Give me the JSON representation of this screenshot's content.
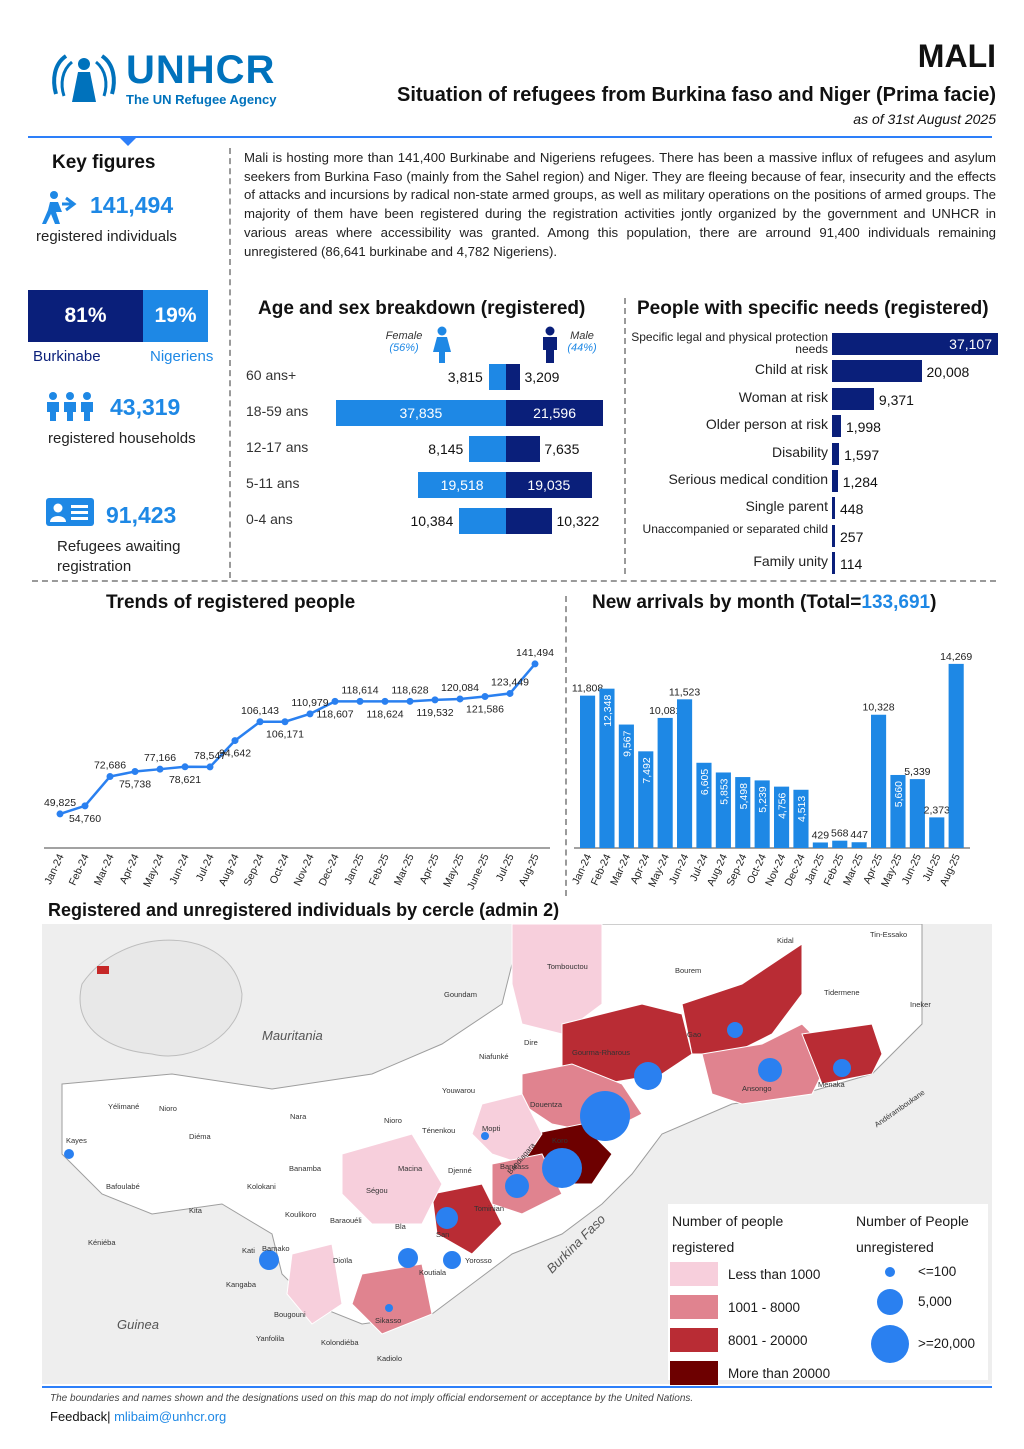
{
  "header": {
    "logo_text": "UNHCR",
    "logo_tagline": "The UN Refugee Agency",
    "country": "MALI",
    "subtitle": "Situation of refugees from Burkina faso and Niger (Prima facie)",
    "as_of": "as of 31st August 2025"
  },
  "key_figures": {
    "title": "Key figures",
    "registered_individuals": "141,494",
    "registered_individuals_label": "registered individuals",
    "burkinabe_pct": "81%",
    "nigeriens_pct": "19%",
    "burkinabe_share": 0.81,
    "burkinabe_label": "Burkinabe",
    "nigeriens_label": "Nigeriens",
    "households": "43,319",
    "households_label": "registered households",
    "awaiting": "91,423",
    "awaiting_label": "Refugees awaiting registration"
  },
  "intro": "Mali is hosting more than 141,400 Burkinabe and Nigeriens refugees. There has been a massive influx of refugees and asylum seekers from Burkina Faso (mainly from the Sahel region) and Niger. They are fleeing because of fear, insecurity and the effects of attacks and incursions by radical non-state armed groups, as well as military operations on the positions of armed groups. The majority of them have been registered during the registration activities jontly organized by the government and UNHCR in various areas where accessibility was granted. Among this population, there are arround 91,400 individuals remaining unregistered (86,641 burkinabe and 4,782 Nigeriens).",
  "age_sex": {
    "title": "Age and sex breakdown (registered)",
    "female_label": "Female",
    "female_pct": "(56%)",
    "male_label": "Male",
    "male_pct": "(44%)",
    "rows": [
      {
        "age": "60 ans+",
        "female": 3815,
        "male": 3209,
        "female_text": "3,815",
        "male_text": "3,209"
      },
      {
        "age": "18-59 ans",
        "female": 37835,
        "male": 21596,
        "female_text": "37,835",
        "male_text": "21,596"
      },
      {
        "age": "12-17 ans",
        "female": 8145,
        "male": 7635,
        "female_text": "8,145",
        "male_text": "7,635"
      },
      {
        "age": "5-11 ans",
        "female": 19518,
        "male": 19035,
        "female_text": "19,518",
        "male_text": "19,035"
      },
      {
        "age": "0-4 ans",
        "female": 10384,
        "male": 10322,
        "female_text": "10,384",
        "male_text": "10,322"
      }
    ]
  },
  "specific_needs": {
    "title": "People with specific needs (registered)",
    "items": [
      {
        "label": "Specific legal and physical protection needs",
        "value": 37107,
        "text": "37,107"
      },
      {
        "label": "Child at risk",
        "value": 20008,
        "text": "20,008"
      },
      {
        "label": "Woman at risk",
        "value": 9371,
        "text": "9,371"
      },
      {
        "label": "Older person at risk",
        "value": 1998,
        "text": "1,998"
      },
      {
        "label": "Disability",
        "value": 1597,
        "text": "1,597"
      },
      {
        "label": "Serious medical condition",
        "value": 1284,
        "text": "1,284"
      },
      {
        "label": "Single parent",
        "value": 448,
        "text": "448"
      },
      {
        "label": "Unaccompanied or separated child",
        "value": 257,
        "text": "257"
      },
      {
        "label": "Family unity",
        "value": 114,
        "text": "114"
      }
    ]
  },
  "chart_data": [
    {
      "type": "line",
      "title": "Trends of registered people",
      "categories": [
        "Jan-24",
        "Feb-24",
        "Mar-24",
        "Apr-24",
        "May-24",
        "Jun-24",
        "Jul-24",
        "Aug-24",
        "Sep-24",
        "Oct-24",
        "Nov-24",
        "Dec-24",
        "Jan-25",
        "Feb-25",
        "Mar-25",
        "Apr-25",
        "May-25",
        "June-25",
        "Jul-25",
        "Aug-25"
      ],
      "values": [
        49825,
        54760,
        72686,
        75738,
        77166,
        78621,
        78547,
        94642,
        106143,
        106171,
        110979,
        118607,
        118614,
        118624,
        118628,
        119532,
        120084,
        121586,
        123449,
        141494
      ],
      "labels": [
        "49,825",
        "54,760",
        "72,686",
        "75,738",
        "77,166",
        "78,621",
        "78,547",
        "94,642",
        "106,143",
        "106,171",
        "110,979",
        "118,607",
        "118,614",
        "118,624",
        "118,628",
        "119,532",
        "120,084",
        "121,586",
        "123,449",
        "141,494"
      ],
      "ylim": [
        40000,
        150000
      ]
    },
    {
      "type": "bar",
      "title": "New arrivals by month (Total=",
      "total": "133,691",
      "title_end": ")",
      "categories": [
        "Jan-24",
        "Feb-24",
        "Mar-24",
        "Apr-24",
        "May-24",
        "Jun-24",
        "Jul-24",
        "Aug-24",
        "Sep-24",
        "Oct-24",
        "Nov-24",
        "Dec-24",
        "Jan-25",
        "Feb-25",
        "Mar-25",
        "Apr-25",
        "May-25",
        "Jun-25",
        "Jul-25",
        "Aug-25"
      ],
      "values": [
        11808,
        12348,
        9567,
        7492,
        10081,
        11523,
        6605,
        5853,
        5498,
        5239,
        4756,
        4513,
        429,
        568,
        447,
        10328,
        5660,
        5339,
        2373,
        14269
      ],
      "labels": [
        "11,808",
        "12,348",
        "9,567",
        "7,492",
        "10,081",
        "11,523",
        "6,605",
        "5,853",
        "5,498",
        "5,239",
        "4,756",
        "4,513",
        "429",
        "568",
        "447",
        "10,328",
        "5,660",
        "5,339",
        "2,373",
        "14,269"
      ],
      "ylim": [
        0,
        15500
      ]
    }
  ],
  "map": {
    "title": "Registered and unregistered individuals by cercle (admin 2)",
    "countries": [
      "Mauritania",
      "Guinea",
      "Burkina Faso"
    ],
    "places": [
      "Tombouctou",
      "Kidal",
      "Tin-Essako",
      "Bourem",
      "Goundam",
      "Tessalit",
      "Tidermene",
      "Ineker",
      "Dire",
      "Gourma-Rharous",
      "Gao",
      "Niafunké",
      "Ansongo",
      "Menaka",
      "Andéramboukane",
      "Youwarou",
      "Douentza",
      "Yélimané",
      "Nioro",
      "Nara",
      "Nioro",
      "Ténenkou",
      "Mopti",
      "Bandiagara",
      "Koro",
      "Kayes",
      "Diéma",
      "Banamba",
      "Macina",
      "Djenné",
      "Bankass",
      "Ségou",
      "Bafoulabé",
      "Kolokani",
      "Tominian",
      "Kita",
      "Koulikoro",
      "Baraouéli",
      "Bla",
      "San",
      "Kéniéba",
      "Kati",
      "Bamako",
      "Dioïla",
      "Koutiala",
      "Yorosso",
      "Kangaba",
      "Sikasso",
      "Bougouni",
      "Yanfolila",
      "Kolondiéba",
      "Kadiolo"
    ],
    "legend_registered_title": "Number of people registered",
    "legend_unregistered_title": "Number of People unregistered",
    "legend_registered": [
      "Less than 1000",
      "1001 - 8000",
      "8001 - 20000",
      "More than 20000"
    ],
    "legend_registered_colors": [
      "#f7cfdc",
      "#e0838f",
      "#b92c34",
      "#6d0000"
    ],
    "legend_unregistered": [
      "<=100",
      "5,000",
      ">=20,000"
    ],
    "bubble_color": "#2a80f0"
  },
  "footer": {
    "disclaimer": "The boundaries and names shown and the designations used on this map do not imply official endorsement or acceptance by the United Nations.",
    "feedback_label": "Feedback|",
    "email": "mlibaim@unhcr.org"
  }
}
